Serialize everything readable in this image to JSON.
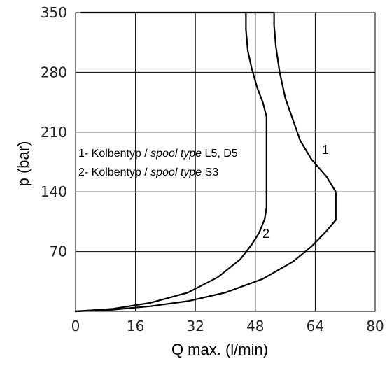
{
  "chart_data": {
    "type": "line",
    "xlabel": "Q max. (l/min)",
    "ylabel": "p (bar)",
    "xlim": [
      0,
      80
    ],
    "ylim": [
      0,
      350
    ],
    "xticks": [
      0,
      16,
      32,
      48,
      64,
      80
    ],
    "yticks": [
      70,
      140,
      210,
      280,
      350
    ],
    "grid": true,
    "legend": {
      "line1_prefix": "1- Kolbentyp / ",
      "line1_italic": "spool type",
      "line1_suffix": " L5, D5",
      "line2_prefix": "2- Kolbentyp / ",
      "line2_italic": "spool type",
      "line2_suffix": " S3"
    },
    "series": [
      {
        "name": "1",
        "points": [
          [
            0,
            0
          ],
          [
            10,
            2
          ],
          [
            20,
            6
          ],
          [
            30,
            12
          ],
          [
            40,
            22
          ],
          [
            50,
            38
          ],
          [
            58,
            58
          ],
          [
            63,
            76
          ],
          [
            67,
            94
          ],
          [
            69.5,
            107
          ],
          [
            69.5,
            118
          ],
          [
            69.5,
            129
          ],
          [
            69.5,
            140
          ],
          [
            67,
            158
          ],
          [
            63,
            178
          ],
          [
            60,
            200
          ],
          [
            58,
            225
          ],
          [
            56,
            250
          ],
          [
            54.5,
            280
          ],
          [
            53.5,
            310
          ],
          [
            53,
            335
          ],
          [
            53,
            350
          ]
        ]
      },
      {
        "name": "2",
        "points": [
          [
            0,
            0
          ],
          [
            10,
            3
          ],
          [
            20,
            10
          ],
          [
            30,
            22
          ],
          [
            38,
            40
          ],
          [
            44,
            61
          ],
          [
            47,
            78
          ],
          [
            49,
            92
          ],
          [
            50.5,
            108
          ],
          [
            51,
            122
          ],
          [
            51,
            150
          ],
          [
            51,
            190
          ],
          [
            51,
            228
          ],
          [
            50,
            245
          ],
          [
            48.5,
            262
          ],
          [
            47,
            285
          ],
          [
            46,
            305
          ],
          [
            45.5,
            330
          ],
          [
            45.5,
            350
          ]
        ]
      }
    ],
    "hline": {
      "y": 350,
      "x_from": 1.5,
      "x_to": 53
    }
  }
}
